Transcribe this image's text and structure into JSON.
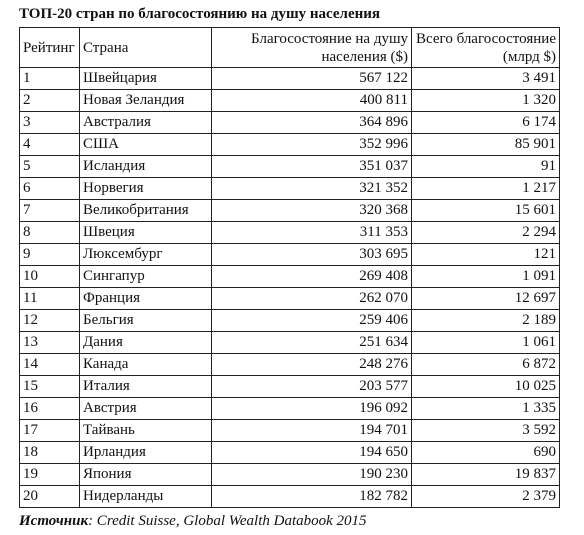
{
  "title": "ТОП-20 стран по благосостоянию на душу населения",
  "table": {
    "headers": {
      "rank": "Рейтинг",
      "country": "Страна",
      "per_capita": "Благосостояние на душу населения ($)",
      "total": "Всего благосостояние (млрд $)"
    },
    "rows": [
      {
        "rank": "1",
        "country": "Швейцария",
        "per_capita": "567 122",
        "total": "3 491"
      },
      {
        "rank": "2",
        "country": "Новая Зеландия",
        "per_capita": "400 811",
        "total": "1 320"
      },
      {
        "rank": "3",
        "country": "Австралия",
        "per_capita": "364 896",
        "total": "6 174"
      },
      {
        "rank": "4",
        "country": "США",
        "per_capita": "352 996",
        "total": "85 901"
      },
      {
        "rank": "5",
        "country": "Исландия",
        "per_capita": "351 037",
        "total": "91"
      },
      {
        "rank": "6",
        "country": "Норвегия",
        "per_capita": "321 352",
        "total": "1 217"
      },
      {
        "rank": "7",
        "country": "Великобритания",
        "per_capita": "320 368",
        "total": "15 601"
      },
      {
        "rank": "8",
        "country": "Швеция",
        "per_capita": "311 353",
        "total": "2 294"
      },
      {
        "rank": "9",
        "country": "Люксембург",
        "per_capita": "303 695",
        "total": "121"
      },
      {
        "rank": "10",
        "country": "Сингапур",
        "per_capita": "269 408",
        "total": "1 091"
      },
      {
        "rank": "11",
        "country": "Франция",
        "per_capita": "262 070",
        "total": "12 697"
      },
      {
        "rank": "12",
        "country": "Бельгия",
        "per_capita": "259 406",
        "total": "2 189"
      },
      {
        "rank": "13",
        "country": "Дания",
        "per_capita": "251 634",
        "total": "1 061"
      },
      {
        "rank": "14",
        "country": "Канада",
        "per_capita": "248 276",
        "total": "6 872"
      },
      {
        "rank": "15",
        "country": "Италия",
        "per_capita": "203 577",
        "total": "10 025"
      },
      {
        "rank": "16",
        "country": "Австрия",
        "per_capita": "196 092",
        "total": "1 335"
      },
      {
        "rank": "17",
        "country": "Тайвань",
        "per_capita": "194 701",
        "total": "3 592"
      },
      {
        "rank": "18",
        "country": "Ирландия",
        "per_capita": "194 650",
        "total": "690"
      },
      {
        "rank": "19",
        "country": "Япония",
        "per_capita": "190 230",
        "total": "19 837"
      },
      {
        "rank": "20",
        "country": "Нидерланды",
        "per_capita": "182 782",
        "total": "2 379"
      }
    ]
  },
  "source": {
    "label": "Источник",
    "text": ": Credit Suisse, Global Wealth Databook 2015"
  }
}
